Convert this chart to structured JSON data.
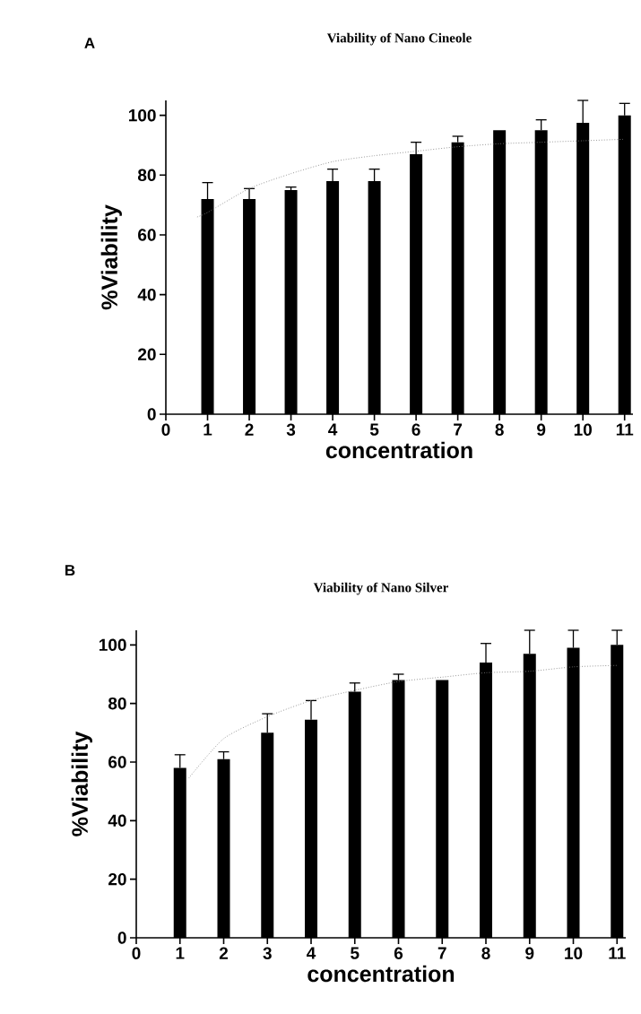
{
  "chart_data": [
    {
      "type": "bar",
      "title": "Viability of Nano Cineole",
      "xlabel": "concentration",
      "ylabel": "%Viability",
      "annotations": [
        "A"
      ],
      "x": [
        1,
        2,
        3,
        4,
        5,
        6,
        7,
        8,
        9,
        10,
        11
      ],
      "series": [
        {
          "color": "#000000",
          "values": [
            72,
            72,
            75,
            78,
            78,
            87,
            91,
            95,
            95,
            97.5,
            100
          ],
          "errors": [
            5.5,
            3.5,
            1,
            4,
            4,
            4,
            2,
            null,
            3.5,
            7.5,
            4
          ]
        },
        {
          "type": "line",
          "color": "#808080",
          "line_style": "dotted",
          "x": [
            0.75,
            1,
            2,
            3,
            4,
            5,
            6,
            7,
            8,
            9,
            10,
            11
          ],
          "values": [
            66,
            67.5,
            75.5,
            80.5,
            84.5,
            86.5,
            88,
            89.5,
            90.5,
            91,
            91.5,
            92
          ]
        }
      ],
      "marker": "none",
      "xlim": [
        0,
        11.2
      ],
      "ylim": [
        0,
        105
      ],
      "xticks": [
        0,
        1,
        2,
        3,
        4,
        5,
        6,
        7,
        8,
        9,
        10,
        11
      ],
      "yticks": [
        0,
        20,
        40,
        60,
        80,
        100
      ]
    },
    {
      "type": "bar",
      "title": "Viability of Nano Silver",
      "xlabel": "concentration",
      "ylabel": "%Viability",
      "annotations": [
        "B"
      ],
      "x": [
        1,
        2,
        3,
        4,
        5,
        6,
        7,
        8,
        9,
        10,
        11
      ],
      "series": [
        {
          "color": "#000000",
          "values": [
            58,
            61,
            70,
            74.5,
            84,
            88,
            88,
            94,
            97,
            99,
            100
          ],
          "errors": [
            4.5,
            2.5,
            6.5,
            6.5,
            3,
            2,
            null,
            6.5,
            8,
            6,
            5
          ]
        },
        {
          "type": "line",
          "color": "#808080",
          "line_style": "dotted",
          "x": [
            1.2,
            2,
            3,
            4,
            5,
            6,
            7,
            8,
            9,
            10,
            11
          ],
          "values": [
            54.5,
            68,
            75.5,
            81,
            84.5,
            87.5,
            89,
            90.5,
            91,
            92.5,
            93
          ]
        }
      ],
      "marker": "none",
      "xlim": [
        0,
        11.2
      ],
      "ylim": [
        0,
        105
      ],
      "xticks": [
        0,
        1,
        2,
        3,
        4,
        5,
        6,
        7,
        8,
        9,
        10,
        11
      ],
      "yticks": [
        0,
        20,
        40,
        60,
        80,
        100
      ]
    }
  ]
}
